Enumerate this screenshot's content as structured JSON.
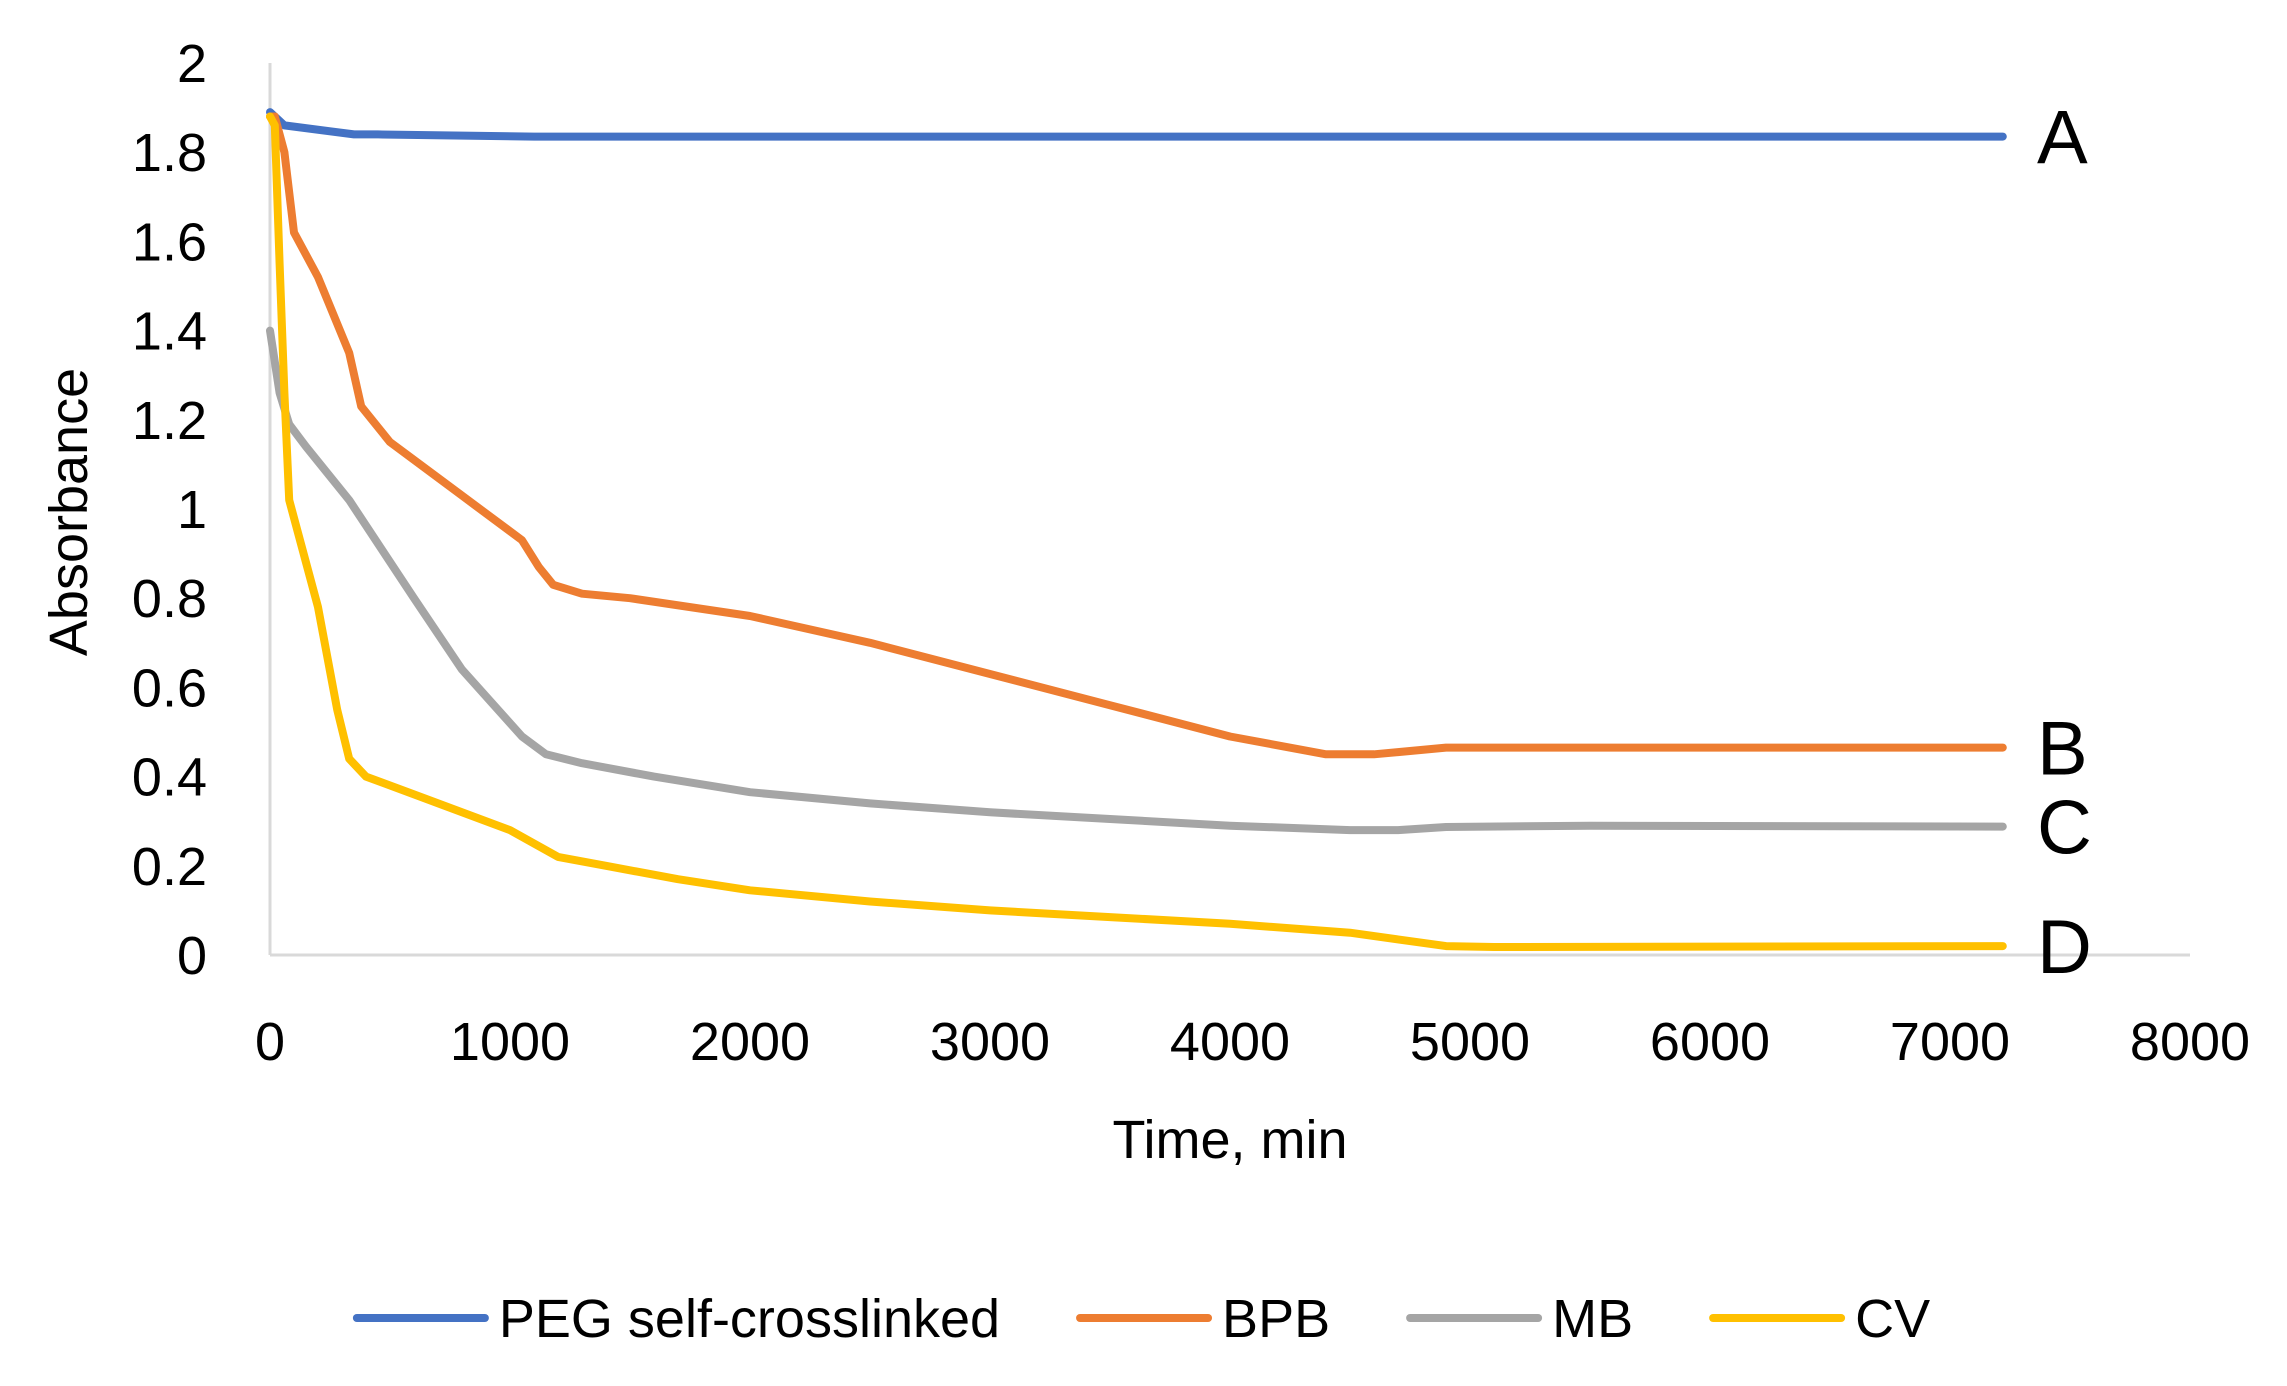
{
  "chart_data": {
    "type": "line",
    "title": "",
    "xlabel": "Time, min",
    "ylabel": "Absorbance",
    "xlim": [
      0,
      8000
    ],
    "ylim": [
      0,
      2
    ],
    "xticks": [
      0,
      1000,
      2000,
      3000,
      4000,
      5000,
      6000,
      7000,
      8000
    ],
    "yticks": [
      0,
      0.2,
      0.4,
      0.6,
      0.8,
      1,
      1.2,
      1.4,
      1.6,
      1.8,
      2
    ],
    "xtick_labels": [
      "0",
      "1000",
      "2000",
      "3000",
      "4000",
      "5000",
      "6000",
      "7000",
      "8000"
    ],
    "ytick_labels": [
      "0",
      "0.2",
      "0.4",
      "0.6",
      "0.8",
      "1",
      "1.2",
      "1.4",
      "1.6",
      "1.8",
      "2"
    ],
    "grid": false,
    "legend_position": "bottom",
    "series": [
      {
        "name": "PEG self-crosslinked",
        "tag": "A",
        "color": "#4472C4",
        "x": [
          0,
          60,
          350,
          450,
          1100,
          2000,
          3000,
          4000,
          5000,
          6000,
          7220
        ],
        "y": [
          1.89,
          1.86,
          1.84,
          1.84,
          1.835,
          1.835,
          1.835,
          1.835,
          1.835,
          1.835,
          1.835
        ]
      },
      {
        "name": "BPB",
        "tag": "B",
        "color": "#ED7D31",
        "x": [
          0,
          20,
          60,
          100,
          200,
          330,
          380,
          500,
          800,
          1050,
          1120,
          1180,
          1300,
          1500,
          2000,
          2500,
          3000,
          3500,
          4000,
          4400,
          4600,
          4700,
          4900,
          5100,
          7220
        ],
        "y": [
          1.88,
          1.88,
          1.8,
          1.62,
          1.52,
          1.35,
          1.23,
          1.15,
          1.03,
          0.93,
          0.87,
          0.83,
          0.81,
          0.8,
          0.76,
          0.7,
          0.63,
          0.56,
          0.49,
          0.45,
          0.45,
          0.455,
          0.465,
          0.465,
          0.465
        ]
      },
      {
        "name": "MB",
        "tag": "C",
        "color": "#A5A5A5",
        "x": [
          0,
          40,
          80,
          150,
          330,
          600,
          800,
          1050,
          1150,
          1300,
          1600,
          2000,
          2500,
          3000,
          3500,
          4000,
          4500,
          4700,
          4900,
          5500,
          7220
        ],
        "y": [
          1.4,
          1.26,
          1.19,
          1.14,
          1.02,
          0.8,
          0.64,
          0.49,
          0.45,
          0.43,
          0.4,
          0.365,
          0.34,
          0.32,
          0.305,
          0.29,
          0.28,
          0.28,
          0.287,
          0.29,
          0.288
        ]
      },
      {
        "name": "CV",
        "tag": "D",
        "color": "#FFC000",
        "x": [
          0,
          20,
          40,
          60,
          80,
          130,
          200,
          280,
          330,
          400,
          600,
          800,
          1000,
          1100,
          1200,
          1400,
          1700,
          2000,
          2500,
          3000,
          3500,
          4000,
          4500,
          4700,
          4900,
          5100,
          7220
        ],
        "y": [
          1.88,
          1.86,
          1.55,
          1.26,
          1.02,
          0.92,
          0.78,
          0.55,
          0.44,
          0.4,
          0.36,
          0.32,
          0.28,
          0.25,
          0.22,
          0.2,
          0.17,
          0.145,
          0.12,
          0.1,
          0.085,
          0.07,
          0.05,
          0.035,
          0.02,
          0.018,
          0.02
        ]
      }
    ]
  }
}
